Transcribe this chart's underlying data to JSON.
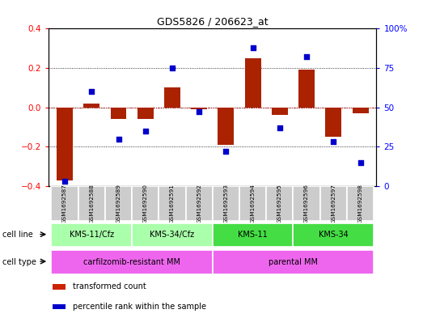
{
  "title": "GDS5826 / 206623_at",
  "samples": [
    "GSM1692587",
    "GSM1692588",
    "GSM1692589",
    "GSM1692590",
    "GSM1692591",
    "GSM1692592",
    "GSM1692593",
    "GSM1692594",
    "GSM1692595",
    "GSM1692596",
    "GSM1692597",
    "GSM1692598"
  ],
  "bar_values": [
    -0.37,
    0.02,
    -0.06,
    -0.06,
    0.1,
    -0.01,
    -0.19,
    0.25,
    -0.04,
    0.19,
    -0.15,
    -0.03
  ],
  "percentile_values": [
    3,
    60,
    30,
    35,
    75,
    47,
    22,
    88,
    37,
    82,
    28,
    15
  ],
  "bar_color": "#aa2200",
  "dot_color": "#0000cc",
  "ylim_left": [
    -0.4,
    0.4
  ],
  "ylim_right": [
    0,
    100
  ],
  "yticks_left": [
    -0.4,
    -0.2,
    0.0,
    0.2,
    0.4
  ],
  "yticks_right": [
    0,
    25,
    50,
    75,
    100
  ],
  "ytick_labels_right": [
    "0",
    "25",
    "50",
    "75",
    "100%"
  ],
  "cell_line_groups": [
    {
      "label": "KMS-11/Cfz",
      "start": 0,
      "end": 2,
      "color": "#aaffaa"
    },
    {
      "label": "KMS-34/Cfz",
      "start": 3,
      "end": 5,
      "color": "#aaffaa"
    },
    {
      "label": "KMS-11",
      "start": 6,
      "end": 8,
      "color": "#44dd44"
    },
    {
      "label": "KMS-34",
      "start": 9,
      "end": 11,
      "color": "#44dd44"
    }
  ],
  "cell_type_groups": [
    {
      "label": "carfilzomib-resistant MM",
      "start": 0,
      "end": 5,
      "color": "#ee66ee"
    },
    {
      "label": "parental MM",
      "start": 6,
      "end": 11,
      "color": "#ee66ee"
    }
  ],
  "legend_items": [
    {
      "label": "transformed count",
      "color": "#cc2200"
    },
    {
      "label": "percentile rank within the sample",
      "color": "#0000cc"
    }
  ],
  "background_color": "#ffffff",
  "plot_bg_color": "#ffffff",
  "sample_box_color": "#cccccc",
  "zero_line_color": "#cc0000"
}
